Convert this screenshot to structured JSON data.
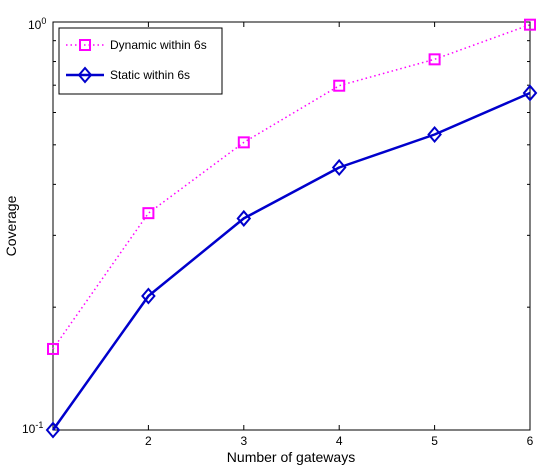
{
  "chart_data": {
    "type": "line",
    "xlabel": "Number of gateways",
    "ylabel": "Coverage",
    "xlim": [
      1,
      6
    ],
    "ylim": [
      0.1,
      1
    ],
    "yscale": "log",
    "grid": false,
    "legend_position": "top-left",
    "x_ticks": [
      "2",
      "3",
      "4",
      "5",
      "6"
    ],
    "y_tick_base": "10",
    "y_tick_exponents": [
      "-1",
      "0"
    ],
    "x": [
      1,
      2,
      3,
      4,
      5,
      6
    ],
    "series": [
      {
        "name": "Dynamic within 6s",
        "values": [
          0.158,
          0.34,
          0.507,
          0.698,
          0.81,
          0.985
        ],
        "color": "#ff00ff",
        "line_style": "dotted",
        "marker": "square"
      },
      {
        "name": "Static within 6s",
        "values": [
          0.1,
          0.213,
          0.33,
          0.44,
          0.53,
          0.67
        ],
        "color": "#0000cc",
        "line_style": "solid",
        "marker": "diamond"
      }
    ]
  }
}
